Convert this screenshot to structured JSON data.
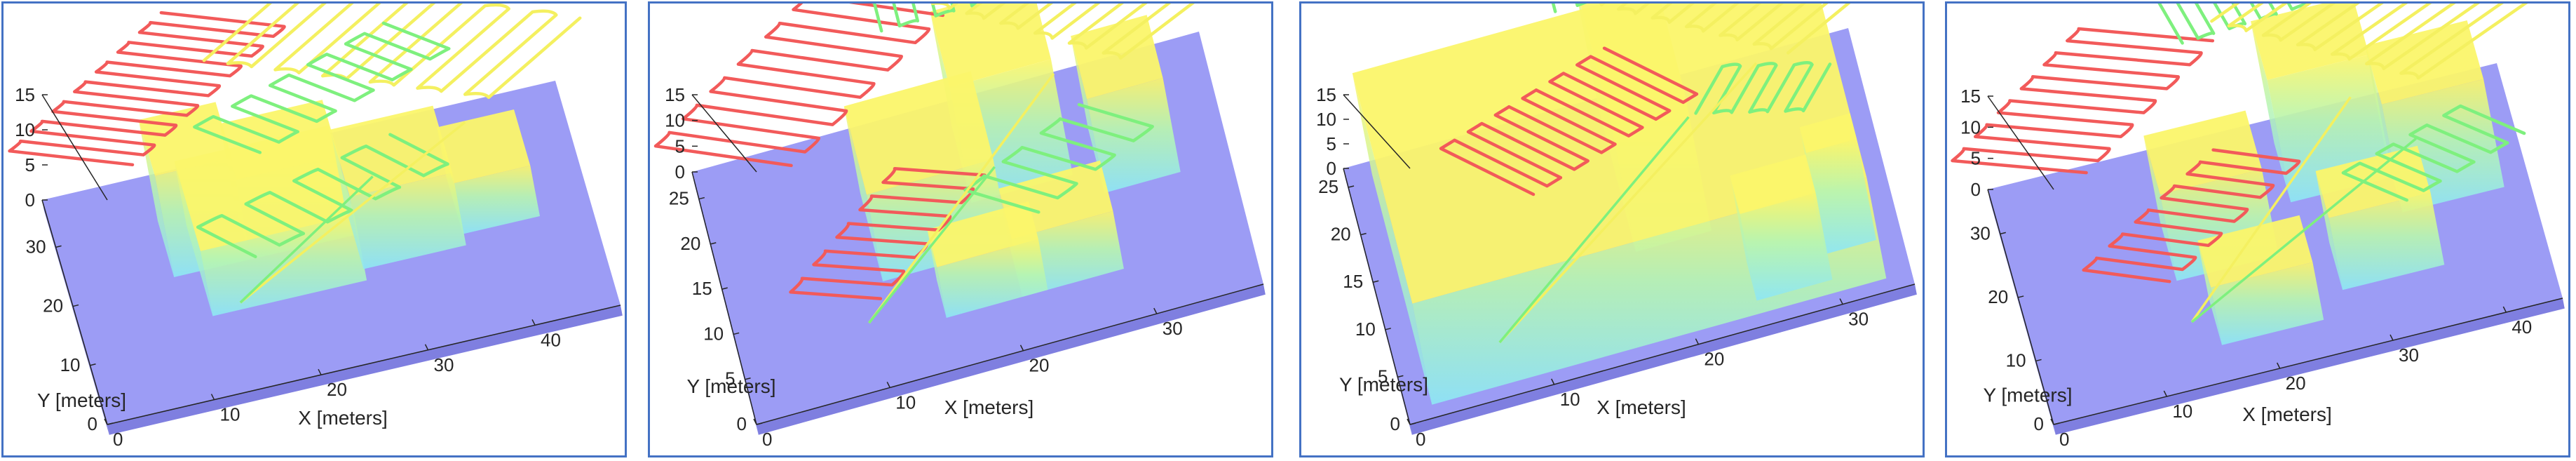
{
  "colors": {
    "ground": "#9c9cf5",
    "ground_edge": "#7f7fe0",
    "border": "#4472c4",
    "path_red": "#f25a5a",
    "path_green": "#7ef07e",
    "path_yellow": "#f4f060",
    "building_low": "#8ee6f5",
    "building_mid": "#b8f5b0",
    "building_top": "#fbf56a"
  },
  "chart_data": [
    {
      "type": "3d-surface-with-paths",
      "xlabel": "X [meters]",
      "ylabel": "Y [meters]",
      "x_ticks": [
        "0",
        "10",
        "20",
        "30",
        "40"
      ],
      "y_ticks": [
        "0",
        "10",
        "20",
        "30"
      ],
      "z_ticks": [
        "0",
        "5",
        "10",
        "15"
      ],
      "xlim": [
        0,
        48
      ],
      "ylim": [
        0,
        38
      ],
      "zlim": [
        0,
        15
      ]
    },
    {
      "type": "3d-surface-with-paths",
      "xlabel": "X [meters]",
      "ylabel": "Y [meters]",
      "x_ticks": [
        "0",
        "10",
        "20",
        "30"
      ],
      "y_ticks": [
        "0",
        "5",
        "10",
        "15",
        "20",
        "25"
      ],
      "z_ticks": [
        "0",
        "5",
        "10",
        "15"
      ],
      "xlim": [
        0,
        38
      ],
      "ylim": [
        0,
        28
      ],
      "zlim": [
        0,
        15
      ]
    },
    {
      "type": "3d-surface-with-paths",
      "xlabel": "X [meters]",
      "ylabel": "Y [meters]",
      "x_ticks": [
        "0",
        "10",
        "20",
        "30"
      ],
      "y_ticks": [
        "0",
        "5",
        "10",
        "15",
        "20",
        "25"
      ],
      "z_ticks": [
        "0",
        "5",
        "10",
        "15"
      ],
      "xlim": [
        0,
        35
      ],
      "ylim": [
        0,
        27
      ],
      "zlim": [
        0,
        15
      ]
    },
    {
      "type": "3d-surface-with-paths",
      "xlabel": "X [meters]",
      "ylabel": "Y [meters]",
      "x_ticks": [
        "0",
        "10",
        "20",
        "30",
        "40"
      ],
      "y_ticks": [
        "0",
        "10",
        "20",
        "30"
      ],
      "z_ticks": [
        "0",
        "5",
        "10",
        "15"
      ],
      "xlim": [
        0,
        45
      ],
      "ylim": [
        0,
        37
      ],
      "zlim": [
        0,
        15
      ]
    }
  ]
}
